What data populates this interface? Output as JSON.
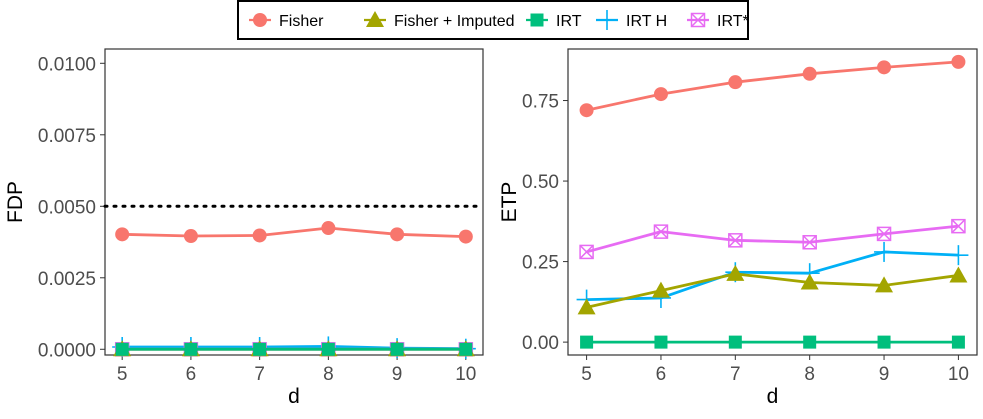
{
  "legend": {
    "items": [
      {
        "key": "fisher",
        "label": "Fisher",
        "color": "#F8766D",
        "marker": "circle"
      },
      {
        "key": "imputed",
        "label": "Fisher + Imputed",
        "color": "#A3A500",
        "marker": "triangle"
      },
      {
        "key": "irt",
        "label": "IRT",
        "color": "#00BF7D",
        "marker": "square"
      },
      {
        "key": "irth",
        "label": "IRT H",
        "color": "#00B0F6",
        "marker": "plus"
      },
      {
        "key": "irtstar",
        "label": "IRT*",
        "color": "#E76BF3",
        "marker": "boxcross"
      }
    ]
  },
  "chart_data": [
    {
      "type": "line",
      "xlabel": "d",
      "ylabel": "FDP",
      "x": [
        5,
        6,
        7,
        8,
        9,
        10
      ],
      "x_ticks": [
        "5",
        "6",
        "7",
        "8",
        "9",
        "10"
      ],
      "y_ticks": [
        {
          "value": 0.0,
          "label": "0.0000"
        },
        {
          "value": 0.0025,
          "label": "0.0025"
        },
        {
          "value": 0.005,
          "label": "0.0050"
        },
        {
          "value": 0.0075,
          "label": "0.0075"
        },
        {
          "value": 0.01,
          "label": "0.0100"
        }
      ],
      "ylim": [
        -0.0002,
        0.0105
      ],
      "reference_line": {
        "y": 0.005,
        "style": "dotted"
      },
      "series": [
        {
          "key": "fisher",
          "name": "Fisher",
          "values": [
            0.00402,
            0.00396,
            0.00398,
            0.00424,
            0.00402,
            0.00394
          ]
        },
        {
          "key": "imputed",
          "name": "Fisher + Imputed",
          "values": [
            0.0,
            0.0,
            0.0,
            0.0,
            0.0,
            0.0
          ]
        },
        {
          "key": "irt",
          "name": "IRT",
          "values": [
            0.0,
            0.0,
            0.0,
            0.0,
            0.0,
            0.0
          ]
        },
        {
          "key": "irth",
          "name": "IRT H",
          "values": [
            8e-05,
            8e-05,
            8e-05,
            0.0001,
            4e-05,
            2e-05
          ]
        },
        {
          "key": "irtstar",
          "name": "IRT*",
          "values": [
            0.0,
            0.0,
            0.0,
            0.0,
            0.0,
            0.0
          ]
        }
      ]
    },
    {
      "type": "line",
      "xlabel": "d",
      "ylabel": "ETP",
      "x": [
        5,
        6,
        7,
        8,
        9,
        10
      ],
      "x_ticks": [
        "5",
        "6",
        "7",
        "8",
        "9",
        "10"
      ],
      "y_ticks": [
        {
          "value": 0.0,
          "label": "0.00"
        },
        {
          "value": 0.25,
          "label": "0.25"
        },
        {
          "value": 0.5,
          "label": "0.50"
        },
        {
          "value": 0.75,
          "label": "0.75"
        }
      ],
      "ylim": [
        -0.04,
        0.91
      ],
      "series": [
        {
          "key": "fisher",
          "name": "Fisher",
          "values": [
            0.72,
            0.77,
            0.807,
            0.833,
            0.853,
            0.87
          ]
        },
        {
          "key": "imputed",
          "name": "Fisher + Imputed",
          "values": [
            0.108,
            0.16,
            0.212,
            0.185,
            0.176,
            0.207
          ]
        },
        {
          "key": "irt",
          "name": "IRT",
          "values": [
            0.0,
            0.0,
            0.0,
            0.0,
            0.0,
            0.0
          ]
        },
        {
          "key": "irth",
          "name": "IRT H",
          "values": [
            0.132,
            0.137,
            0.217,
            0.214,
            0.28,
            0.27
          ]
        },
        {
          "key": "irtstar",
          "name": "IRT*",
          "values": [
            0.28,
            0.343,
            0.316,
            0.31,
            0.336,
            0.36
          ]
        }
      ]
    }
  ]
}
